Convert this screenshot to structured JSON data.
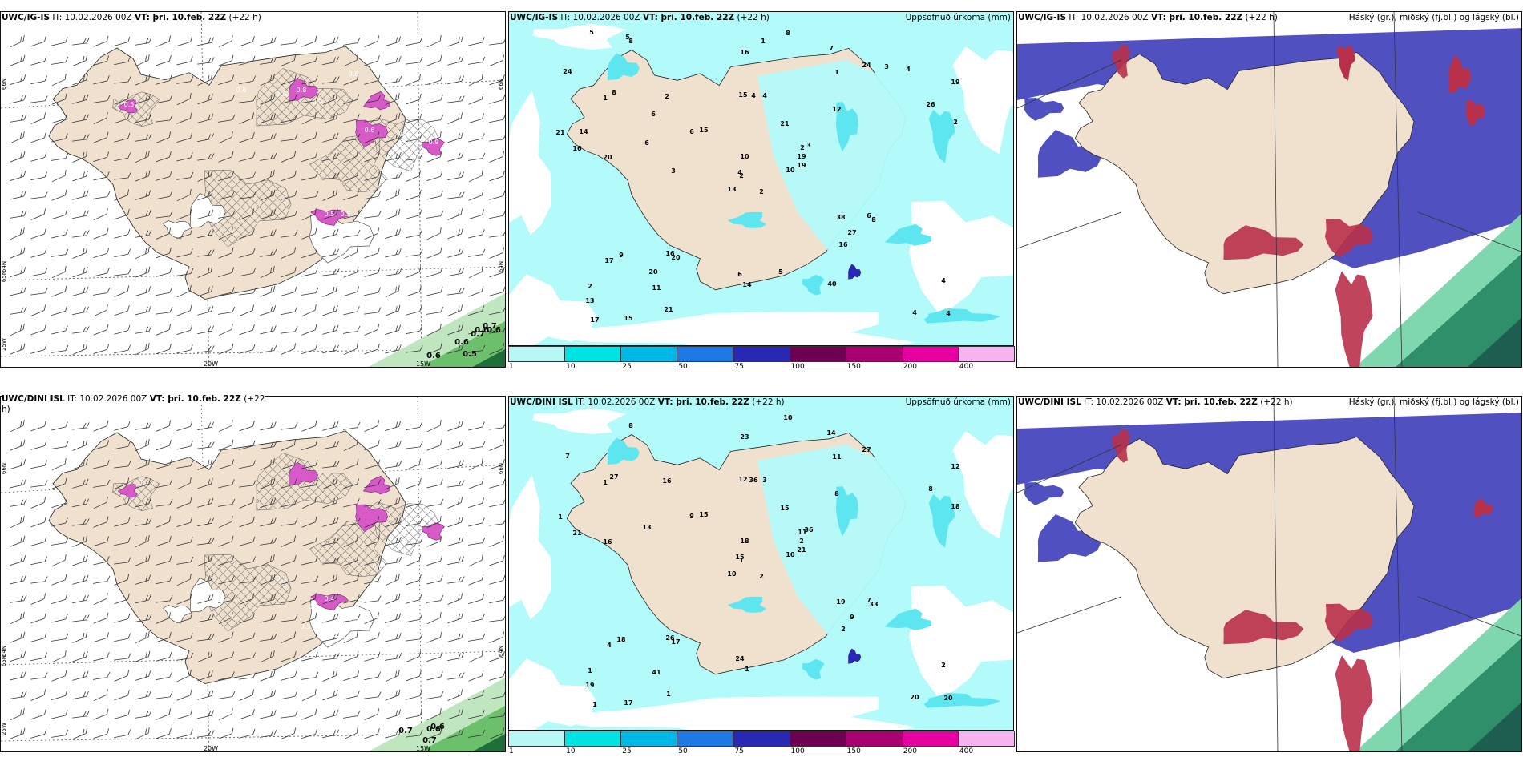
{
  "rows": [
    {
      "name": "ig",
      "wind_panel": {
        "title_model": "UWC/IG-IS",
        "title_it": " IT: 10.02.2026 00Z ",
        "title_vt_label": "VT:",
        "title_vt": " þri. 10.feb. 22Z",
        "title_lead": " (+22 h)",
        "lat_labels": [
          "66N",
          "65N",
          "64N",
          "25W",
          "66N",
          "64N"
        ],
        "lon_labels": [
          "20W",
          "15W"
        ],
        "values": [
          "0.6",
          "0.8",
          "0.9",
          "0.9",
          "0.5",
          "0.6",
          "0.8",
          "0.9",
          "0.5",
          "0.5",
          "0.6",
          "0.6",
          "0.7",
          "0.6",
          "0.6",
          "0.5",
          "0.6",
          "0.7",
          "0.6"
        ]
      },
      "precip_panel": {
        "title_model": "UWC/IG-IS",
        "title_it": " IT: 10.02.2026 00Z ",
        "title_vt_label": "VT:",
        "title_vt": " þri. 10.feb. 22Z",
        "title_lead": " (+22 h)",
        "subtitle": "Uppsöfnuð úrkoma (mm)",
        "values": [
          "2",
          "1",
          "2",
          "2",
          "2",
          "20",
          "7",
          "4",
          "1",
          "10",
          "8",
          "4",
          "20",
          "19",
          "13",
          "12",
          "15",
          "15",
          "21",
          "9",
          "15",
          "13",
          "11",
          "4",
          "3",
          "8",
          "8",
          "16",
          "16",
          "38",
          "2",
          "4",
          "6",
          "10",
          "2",
          "24",
          "16",
          "4",
          "4",
          "6",
          "8",
          "6",
          "6",
          "16",
          "21",
          "21",
          "19",
          "17",
          "14",
          "19",
          "17",
          "26",
          "24",
          "27",
          "40",
          "20",
          "5",
          "5",
          "5",
          "4",
          "1",
          "3",
          "14",
          "6",
          "3"
        ]
      },
      "cloud_panel": {
        "title_model": "UWC/IG-IS",
        "title_it": " IT: 10.02.2026 00Z ",
        "title_vt_label": "VT:",
        "title_vt": " þri. 10.feb. 22Z",
        "title_lead": " (+22 h)",
        "subtitle": "Háský (gr.), miðský (fj.bl.) og lágský (bl.)"
      }
    },
    {
      "name": "dini",
      "wind_panel": {
        "title_model": "UWC/DINI ISL",
        "title_it": " IT: 10.02.2026 00Z ",
        "title_vt_label": "VT:",
        "title_vt": " þri. 10.feb. 22Z",
        "title_lead": " (+22",
        "title_wrap": "h)",
        "lat_labels": [
          "66N",
          "65N",
          "64N",
          "25W",
          "66N",
          "64N"
        ],
        "lon_labels": [
          "20W",
          "15W"
        ],
        "values": [
          "0.4",
          "0.4",
          "0.6",
          "0.5",
          "0.4",
          "0.5",
          "0.3",
          "0.4",
          "0.4",
          "0.5",
          "0.7",
          "0.6",
          "0.7",
          "0.6"
        ]
      },
      "precip_panel": {
        "title_model": "UWC/DINI ISL",
        "title_it": " IT: 10.02.2026 00Z ",
        "title_vt_label": "VT:",
        "title_vt": " þri. 10.feb. 22Z",
        "title_lead": " (+22 h)",
        "subtitle": "Uppsöfnuð úrkoma (mm)",
        "values": [
          "2",
          "1",
          "1",
          "1",
          "11",
          "17",
          "14",
          "3",
          "11",
          "10",
          "8",
          "20",
          "16",
          "12",
          "10",
          "8",
          "17",
          "12",
          "15",
          "18",
          "15",
          "19",
          "41",
          "36",
          "36",
          "33",
          "27",
          "23",
          "21",
          "19",
          "18",
          "15",
          "24",
          "18",
          "16",
          "27",
          "26",
          "20",
          "2",
          "7",
          "10",
          "9",
          "13",
          "2",
          "1",
          "1",
          "2",
          "1",
          "1",
          "21",
          "4",
          "8",
          "7",
          "9"
        ]
      },
      "cloud_panel": {
        "title_model": "UWC/DINI ISL",
        "title_it": " IT: 10.02.2026 00Z ",
        "title_vt_label": "VT:",
        "title_vt": " þri. 10.feb. 22Z",
        "title_lead": " (+22 h)",
        "subtitle": "Háský (gr.), miðský (fj.bl.) og lágský (bl.)"
      }
    }
  ],
  "colorbar": {
    "ticks": [
      "1",
      "10",
      "25",
      "50",
      "75",
      "100",
      "150",
      "200",
      "400"
    ],
    "colors": [
      "#b8f7f5",
      "#00e3e3",
      "#00b8e6",
      "#1e78e6",
      "#2828b4",
      "#6e0050",
      "#a8006e",
      "#e600a0",
      "#f5b4f0"
    ]
  },
  "colors": {
    "land": "#f0e1cf",
    "precip_light": "#b3fafa",
    "precip_mid": "#5ee6f0",
    "hatch": "#666666",
    "snow_pink": "#d75ac8",
    "sea_green": "#2a9a5a",
    "cloud_high": "#2f8f6a",
    "cloud_mid": "#b8304a",
    "cloud_low": "#5050c0"
  }
}
